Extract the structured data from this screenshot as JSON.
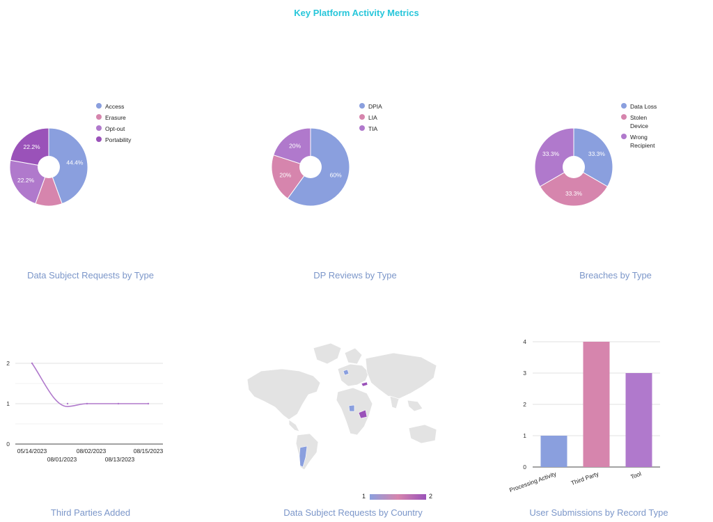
{
  "page": {
    "title": "Key Platform Activity Metrics"
  },
  "colors": {
    "blue": "#8a9fde",
    "pink": "#d685ad",
    "lilac": "#b079cc",
    "purple": "#9a52b9"
  },
  "panels": {
    "dsr_type": {
      "caption": "Data Subject Requests by Type"
    },
    "dp_reviews": {
      "caption": "DP Reviews by Type"
    },
    "breaches": {
      "caption": "Breaches by Type"
    },
    "third_parties": {
      "caption": "Third Parties Added"
    },
    "dsr_country": {
      "caption": "Data Subject Requests by Country",
      "scale_min": "1",
      "scale_max": "2"
    },
    "submissions": {
      "caption": "User Submissions by Record Type"
    }
  },
  "chart_data": [
    {
      "id": "dsr_type",
      "type": "pie",
      "labels": [
        "Access",
        "Erasure",
        "Opt-out",
        "Portability"
      ],
      "values": [
        44.4,
        11.1,
        22.2,
        22.2
      ],
      "slice_labels": [
        "44.4%",
        "",
        "22.2%",
        "22.2%"
      ],
      "colors": [
        "#8a9fde",
        "#d685ad",
        "#b079cc",
        "#9a52b9"
      ],
      "legend": "right"
    },
    {
      "id": "dp_reviews",
      "type": "pie",
      "labels": [
        "DPIA",
        "LIA",
        "TIA"
      ],
      "values": [
        60,
        20,
        20
      ],
      "slice_labels": [
        "60%",
        "20%",
        "20%"
      ],
      "colors": [
        "#8a9fde",
        "#d685ad",
        "#b079cc"
      ],
      "legend": "right"
    },
    {
      "id": "breaches",
      "type": "pie",
      "labels": [
        "Data Loss",
        "Stolen Device",
        "Wrong Recipient"
      ],
      "values": [
        33.3,
        33.3,
        33.3
      ],
      "slice_labels": [
        "33.3%",
        "33.3%",
        "33.3%"
      ],
      "colors": [
        "#8a9fde",
        "#d685ad",
        "#b079cc"
      ],
      "legend": "right"
    },
    {
      "id": "third_parties",
      "type": "line",
      "x_ticks_top": [
        "05/14/2023",
        "08/02/2023",
        "08/15/2023"
      ],
      "x_ticks_bottom": [
        "08/01/2023",
        "08/13/2023"
      ],
      "x": [
        "05/14/2023",
        "08/01/2023",
        "08/02/2023",
        "08/13/2023",
        "08/15/2023"
      ],
      "y": [
        2,
        1,
        1,
        1,
        1
      ],
      "ylim": [
        0,
        2
      ],
      "yticks": [
        0,
        1,
        2
      ],
      "grid": true,
      "color": "#b079cc"
    },
    {
      "id": "dsr_country",
      "type": "heatmap",
      "scale": [
        1,
        2
      ],
      "color_min": "#8a9fde",
      "color_max": "#9a52b9"
    },
    {
      "id": "submissions",
      "type": "bar",
      "categories": [
        "Processing Activity",
        "Third Party",
        "Tool"
      ],
      "values": [
        1,
        4,
        3
      ],
      "colors": [
        "#8a9fde",
        "#d685ad",
        "#b079cc"
      ],
      "ylim": [
        0,
        4
      ],
      "yticks": [
        0,
        1,
        2,
        3,
        4
      ],
      "grid": true
    }
  ]
}
